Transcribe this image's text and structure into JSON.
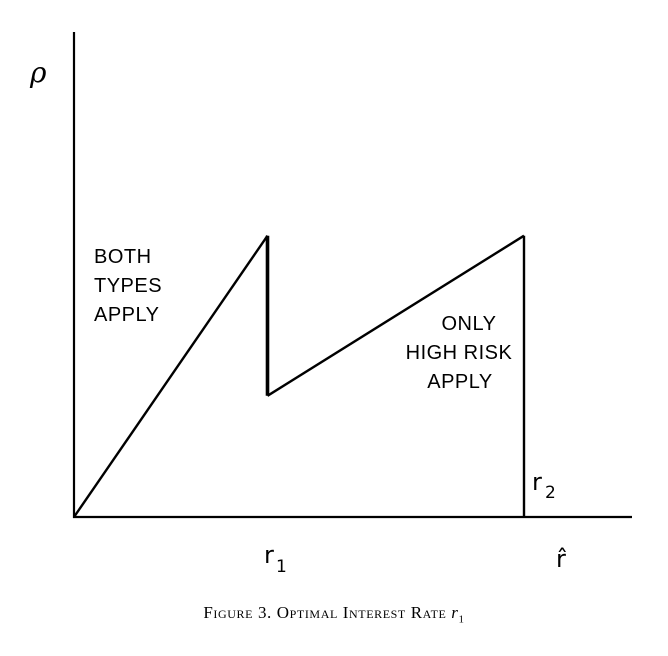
{
  "chart_data": {
    "type": "line",
    "title": "",
    "xlabel": "r̂",
    "ylabel": "ρ",
    "x_ticks": [
      {
        "label": "r",
        "subscript": "1"
      },
      {
        "label": "r",
        "subscript": "2"
      }
    ],
    "series": [
      {
        "points": [
          {
            "x": 0.0,
            "y": 0.0
          },
          {
            "x": 0.43,
            "y": 0.58
          },
          {
            "x": 0.43,
            "y": 0.25
          },
          {
            "x": 1.0,
            "y": 0.58
          },
          {
            "x": 1.0,
            "y": 0.0
          }
        ]
      }
    ],
    "xlim": [
      0,
      1.2
    ],
    "ylim": [
      0,
      1.0
    ],
    "grid": false,
    "annotations": [
      {
        "lines": [
          "BOTH",
          "TYPES",
          "APPLY"
        ]
      },
      {
        "lines": [
          "ONLY",
          "HIGH RISK",
          "APPLY"
        ]
      }
    ]
  },
  "caption": {
    "prefix": "Figure 3. Optimal Interest Rate ",
    "var": "r",
    "sub": "1"
  }
}
